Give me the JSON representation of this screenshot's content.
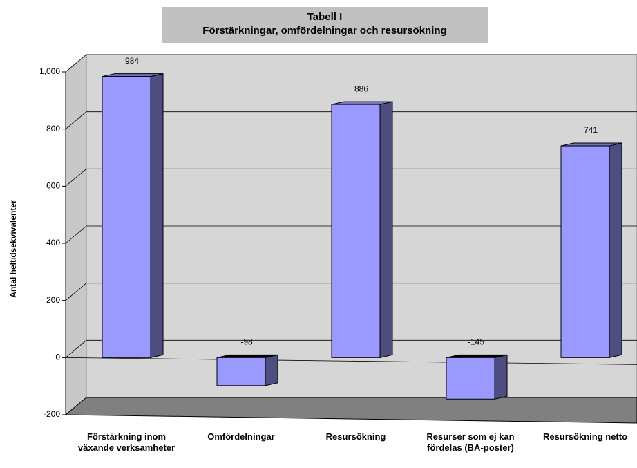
{
  "chart_data": {
    "type": "bar3d",
    "title": "Tabell I",
    "subtitle": "Förstärkningar, omfördelningar och resursökning",
    "ylabel": "Antal heltidsekvivalenter",
    "categories": [
      "Förstärkning inom växande verksamheter",
      "Omfördelningar",
      "Resursökning",
      "Resurser som ej kan fördelas (BA-poster)",
      "Resursökning netto"
    ],
    "values": [
      984,
      -98,
      886,
      -145,
      741
    ],
    "color": "#9999ff",
    "ylim": [
      -200,
      1000
    ],
    "yticks": [
      -200,
      0,
      200,
      400,
      600,
      800,
      {
        "value": 1000,
        "label": "1,000"
      }
    ],
    "grid": true
  }
}
